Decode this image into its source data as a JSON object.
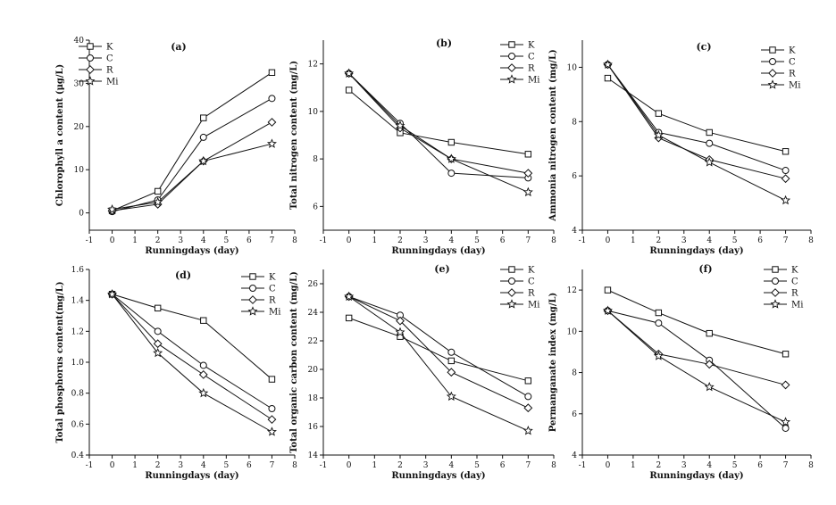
{
  "figure": {
    "background": "#ffffff",
    "ink": "#111111"
  },
  "chart_data": [
    {
      "id": "a",
      "type": "line",
      "panel_label": "(a)",
      "xlabel": "Runningdays (day)",
      "ylabel": "Chlorophyll a content (μg/L)",
      "xlim": [
        -1,
        8
      ],
      "ylim": [
        -4,
        40
      ],
      "xticks": [
        -1,
        0,
        1,
        2,
        3,
        4,
        5,
        6,
        7,
        8
      ],
      "yticks": [
        0,
        10,
        20,
        30,
        40
      ],
      "x": [
        0,
        2,
        4,
        7
      ],
      "series": [
        {
          "name": "K",
          "marker": "square",
          "values": [
            0.5,
            5.0,
            22.0,
            32.5
          ]
        },
        {
          "name": "C",
          "marker": "circle",
          "values": [
            0.3,
            3.0,
            17.5,
            26.5
          ]
        },
        {
          "name": "R",
          "marker": "diamond",
          "values": [
            0.5,
            2.0,
            12.0,
            21.0
          ]
        },
        {
          "name": "Mi",
          "marker": "star",
          "values": [
            0.8,
            2.5,
            12.0,
            16.0
          ]
        }
      ],
      "legend_position": "top-left"
    },
    {
      "id": "b",
      "type": "line",
      "panel_label": "(b)",
      "xlabel": "Runningdays (day)",
      "ylabel": "Total nitrogen content (mg/L)",
      "xlim": [
        -1,
        8
      ],
      "ylim": [
        5,
        13
      ],
      "xticks": [
        -1,
        0,
        1,
        2,
        3,
        4,
        5,
        6,
        7,
        8
      ],
      "yticks": [
        6,
        8,
        10,
        12
      ],
      "x": [
        0,
        2,
        4,
        7
      ],
      "series": [
        {
          "name": "K",
          "marker": "square",
          "values": [
            10.9,
            9.1,
            8.7,
            8.2
          ]
        },
        {
          "name": "C",
          "marker": "circle",
          "values": [
            11.6,
            9.5,
            7.4,
            7.2
          ]
        },
        {
          "name": "R",
          "marker": "diamond",
          "values": [
            11.6,
            9.3,
            8.0,
            7.4
          ]
        },
        {
          "name": "Mi",
          "marker": "star",
          "values": [
            11.6,
            9.4,
            8.0,
            6.6
          ]
        }
      ],
      "legend_position": "top-right"
    },
    {
      "id": "c",
      "type": "line",
      "panel_label": "(c)",
      "xlabel": "Runningdays (day)",
      "ylabel": "Ammonia nitrogen content (mg/L)",
      "xlim": [
        -1,
        8
      ],
      "ylim": [
        4,
        11
      ],
      "xticks": [
        -1,
        0,
        1,
        2,
        3,
        4,
        5,
        6,
        7,
        8
      ],
      "yticks": [
        4,
        6,
        8,
        10
      ],
      "x": [
        0,
        2,
        4,
        7
      ],
      "series": [
        {
          "name": "K",
          "marker": "square",
          "values": [
            9.6,
            8.3,
            7.6,
            6.9
          ]
        },
        {
          "name": "C",
          "marker": "circle",
          "values": [
            10.1,
            7.6,
            7.2,
            6.2
          ]
        },
        {
          "name": "R",
          "marker": "diamond",
          "values": [
            10.1,
            7.4,
            6.6,
            5.9
          ]
        },
        {
          "name": "Mi",
          "marker": "star",
          "values": [
            10.1,
            7.5,
            6.5,
            5.1
          ]
        }
      ],
      "legend_position": "top-right"
    },
    {
      "id": "d",
      "type": "line",
      "panel_label": "(d)",
      "xlabel": "Runningdays (day)",
      "ylabel": "Total phosphorus content(mg/L)",
      "xlim": [
        -1,
        8
      ],
      "ylim": [
        0.4,
        1.6
      ],
      "xticks": [
        -1,
        0,
        1,
        2,
        3,
        4,
        5,
        6,
        7,
        8
      ],
      "yticks": [
        0.4,
        0.6,
        0.8,
        1.0,
        1.2,
        1.4,
        1.6
      ],
      "x": [
        0,
        2,
        4,
        7
      ],
      "series": [
        {
          "name": "K",
          "marker": "square",
          "values": [
            1.44,
            1.35,
            1.27,
            0.89
          ]
        },
        {
          "name": "C",
          "marker": "circle",
          "values": [
            1.44,
            1.2,
            0.98,
            0.7
          ]
        },
        {
          "name": "R",
          "marker": "diamond",
          "values": [
            1.44,
            1.12,
            0.92,
            0.63
          ]
        },
        {
          "name": "Mi",
          "marker": "star",
          "values": [
            1.44,
            1.06,
            0.8,
            0.55
          ]
        }
      ],
      "legend_position": "top-right"
    },
    {
      "id": "e",
      "type": "line",
      "panel_label": "(e)",
      "xlabel": "Runningdays (day)",
      "ylabel": "Total organic carbon content (mg/L)",
      "xlim": [
        -1,
        8
      ],
      "ylim": [
        14,
        27
      ],
      "xticks": [
        -1,
        0,
        1,
        2,
        3,
        4,
        5,
        6,
        7,
        8
      ],
      "yticks": [
        14,
        16,
        18,
        20,
        22,
        24,
        26
      ],
      "x": [
        0,
        2,
        4,
        7
      ],
      "series": [
        {
          "name": "K",
          "marker": "square",
          "values": [
            23.6,
            22.3,
            20.6,
            19.2
          ]
        },
        {
          "name": "C",
          "marker": "circle",
          "values": [
            25.1,
            23.8,
            21.2,
            18.1
          ]
        },
        {
          "name": "R",
          "marker": "diamond",
          "values": [
            25.1,
            23.4,
            19.8,
            17.3
          ]
        },
        {
          "name": "Mi",
          "marker": "star",
          "values": [
            25.1,
            22.6,
            18.1,
            15.7
          ]
        }
      ],
      "legend_position": "top-right"
    },
    {
      "id": "f",
      "type": "line",
      "panel_label": "(f)",
      "xlabel": "Runningdays (day)",
      "ylabel": "Permanganate index (mg/L)",
      "xlim": [
        -1,
        8
      ],
      "ylim": [
        4,
        13
      ],
      "xticks": [
        -1,
        0,
        1,
        2,
        3,
        4,
        5,
        6,
        7,
        8
      ],
      "yticks": [
        4,
        6,
        8,
        10,
        12
      ],
      "x": [
        0,
        2,
        4,
        7
      ],
      "series": [
        {
          "name": "K",
          "marker": "square",
          "values": [
            12.0,
            10.9,
            9.9,
            8.9
          ]
        },
        {
          "name": "C",
          "marker": "circle",
          "values": [
            11.0,
            10.4,
            8.6,
            5.3
          ]
        },
        {
          "name": "R",
          "marker": "diamond",
          "values": [
            11.0,
            8.9,
            8.4,
            7.4
          ]
        },
        {
          "name": "Mi",
          "marker": "star",
          "values": [
            11.0,
            8.8,
            7.3,
            5.6
          ]
        }
      ],
      "legend_position": "top-right"
    }
  ]
}
